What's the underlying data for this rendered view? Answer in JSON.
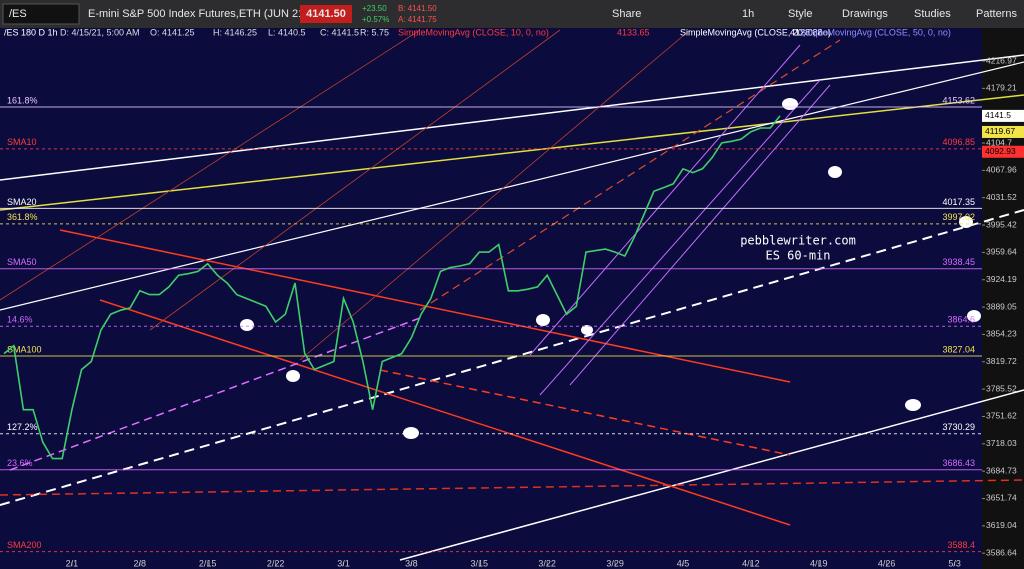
{
  "toolbar": {
    "symbol": "/ES",
    "description": "E-mini S&P 500 Index Futures,ETH (JUN 21)",
    "last": "4141.50",
    "change": "+23.50",
    "change_pct": "+0.57%",
    "bid": "B: 4141.50",
    "ask": "A: 4141.75",
    "buttons": [
      "Share",
      "1h",
      "Style",
      "Drawings",
      "Studies",
      "Patterns"
    ]
  },
  "legend": {
    "symbol": "/ES 180 D 1h",
    "fields": [
      "D: 4/15/21, 5:00 AM",
      "O: 4141.25",
      "H: 4146.25",
      "L: 4140.5",
      "C: 4141.5",
      "R: 5.75"
    ],
    "studies": [
      {
        "name": "SimpleMovingAvg (CLOSE, 10, 0, no)",
        "value": "4133.65",
        "color": "#ff3b3b"
      },
      {
        "name": "SimpleMovingAvg (CLOSE, 20, 0, no)",
        "value": "4128.88",
        "color": "#ffffff"
      },
      {
        "name": "SimpleMovingAvg (CLOSE, 50, 0, no)",
        "color": "#8f8fff"
      }
    ]
  },
  "chart_data": {
    "type": "line",
    "annotation": [
      "pebblewriter.com",
      "ES 60-min"
    ],
    "categories": [
      null,
      null,
      null,
      null,
      null,
      null,
      null,
      "2/1",
      null,
      null,
      null,
      null,
      null,
      null,
      "2/8",
      null,
      null,
      null,
      null,
      null,
      null,
      "2/15",
      null,
      null,
      null,
      null,
      null,
      null,
      "2/22",
      null,
      null,
      null,
      null,
      null,
      null,
      "3/1",
      null,
      null,
      null,
      null,
      null,
      null,
      "3/8",
      null,
      null,
      null,
      null,
      null,
      null,
      "3/15",
      null,
      null,
      null,
      null,
      null,
      null,
      "3/22",
      null,
      null,
      null,
      null,
      null,
      null,
      "3/29",
      null,
      null,
      null,
      null,
      null,
      null,
      "4/5",
      null,
      null,
      null,
      null,
      null,
      null,
      "4/12",
      null,
      null,
      null,
      null,
      null,
      null,
      "4/19",
      null,
      null,
      null,
      null,
      null,
      null,
      "4/26",
      null,
      null,
      null,
      null,
      null,
      null,
      "5/3",
      null,
      null
    ],
    "values": [
      3830,
      3840,
      3760,
      3760,
      3720,
      3700,
      3700,
      3760,
      3810,
      3820,
      3860,
      3880,
      3885,
      3888,
      3910,
      3905,
      3905,
      3915,
      3930,
      3932,
      3935,
      3945,
      3930,
      3920,
      3905,
      3900,
      3895,
      3890,
      3870,
      3880,
      3920,
      3830,
      3810,
      3815,
      3820,
      3900,
      3870,
      3820,
      3760,
      3820,
      3825,
      3830,
      3850,
      3880,
      3900,
      3935,
      3940,
      3942,
      3945,
      3960,
      3960,
      3970,
      3910,
      3910,
      3912,
      3915,
      3930,
      3905,
      3880,
      3890,
      3960,
      3962,
      3964,
      3960,
      3955,
      3980,
      4010,
      4040,
      4045,
      4050,
      4070,
      4065,
      4070,
      4085,
      4105,
      4107,
      4110,
      4120,
      4125,
      4125,
      4141.5,
      null,
      null,
      null,
      null,
      null,
      null,
      null,
      null,
      null,
      null,
      null,
      null,
      null,
      null,
      null,
      null,
      null,
      null,
      null,
      null
    ],
    "color": "#3fcf6a",
    "ylim": [
      3568,
      4256
    ],
    "log_scale": true,
    "grid": false,
    "yticks": [
      4216.97,
      4179.21,
      4104.7,
      4067.96,
      4031.52,
      3995.42,
      3959.64,
      3924.19,
      3889.05,
      3854.23,
      3819.72,
      3785.52,
      3751.62,
      3718.03,
      3684.73,
      3651.74,
      3619.04,
      3586.64
    ],
    "price_tags": [
      {
        "value": 4141.5,
        "color": "#ffffff"
      },
      {
        "value": 4119.67,
        "color": "#f2e34a"
      },
      {
        "value": 4092.93,
        "color": "#ff3030"
      }
    ],
    "levels": [
      {
        "label": "161.8%",
        "value": 4153.62,
        "color": "#e6c8ff"
      },
      {
        "label": "SMA10",
        "value": 4096.85,
        "color": "#ff3b3b"
      },
      {
        "label": "SMA20",
        "value": 4017.35,
        "color": "#ffffff"
      },
      {
        "label": "361.8%",
        "value": 3997.02,
        "color": "#f2e34a"
      },
      {
        "label": "SMA50",
        "value": 3938.45,
        "color": "#d66bff"
      },
      {
        "label": "14.6%",
        "value": 3864.6,
        "color": "#d66bff"
      },
      {
        "label": "SMA100",
        "value": 3827.04,
        "color": "#f2e34a"
      },
      {
        "label": "127.2%",
        "value": 3730.29,
        "color": "#ffffff"
      },
      {
        "label": "23.6%",
        "value": 3686.43,
        "color": "#d66bff"
      },
      {
        "label": "SMA200",
        "value": 3588.4,
        "color": "#ff3b3b"
      }
    ]
  }
}
